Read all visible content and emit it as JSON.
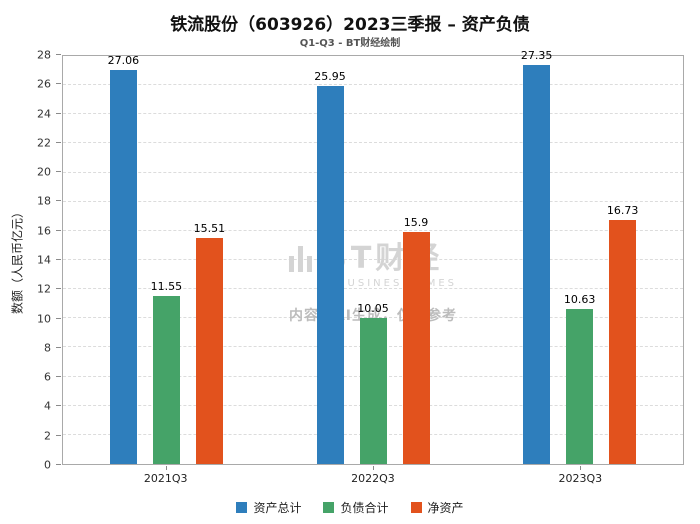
{
  "title": "铁流股份（603926）2023三季报 – 资产负债",
  "subtitle": "Q1-Q3 - BT财经绘制",
  "chart_data": {
    "type": "bar",
    "categories": [
      "2021Q3",
      "2022Q3",
      "2023Q3"
    ],
    "series": [
      {
        "name": "资产总计",
        "color": "#2e7ebc",
        "values": [
          27.06,
          25.95,
          27.35
        ]
      },
      {
        "name": "负债合计",
        "color": "#45a368",
        "values": [
          11.55,
          10.05,
          10.63
        ]
      },
      {
        "name": "净资产",
        "color": "#e2521d",
        "values": [
          15.51,
          15.9,
          16.73
        ]
      }
    ],
    "title": "铁流股份（603926）2023三季报 – 资产负债",
    "xlabel": "",
    "ylabel": "数额（人民币亿元）",
    "ylim": [
      0,
      28
    ],
    "yticks": [
      0,
      2,
      4,
      6,
      8,
      10,
      12,
      14,
      16,
      18,
      20,
      22,
      24,
      26,
      28
    ],
    "grid": true,
    "legend_position": "bottom"
  },
  "watermark": {
    "logo_text": "BT财经",
    "logo_sub": "BUSINESSTIMES",
    "notice": "内容由AI生成，仅供参考"
  }
}
